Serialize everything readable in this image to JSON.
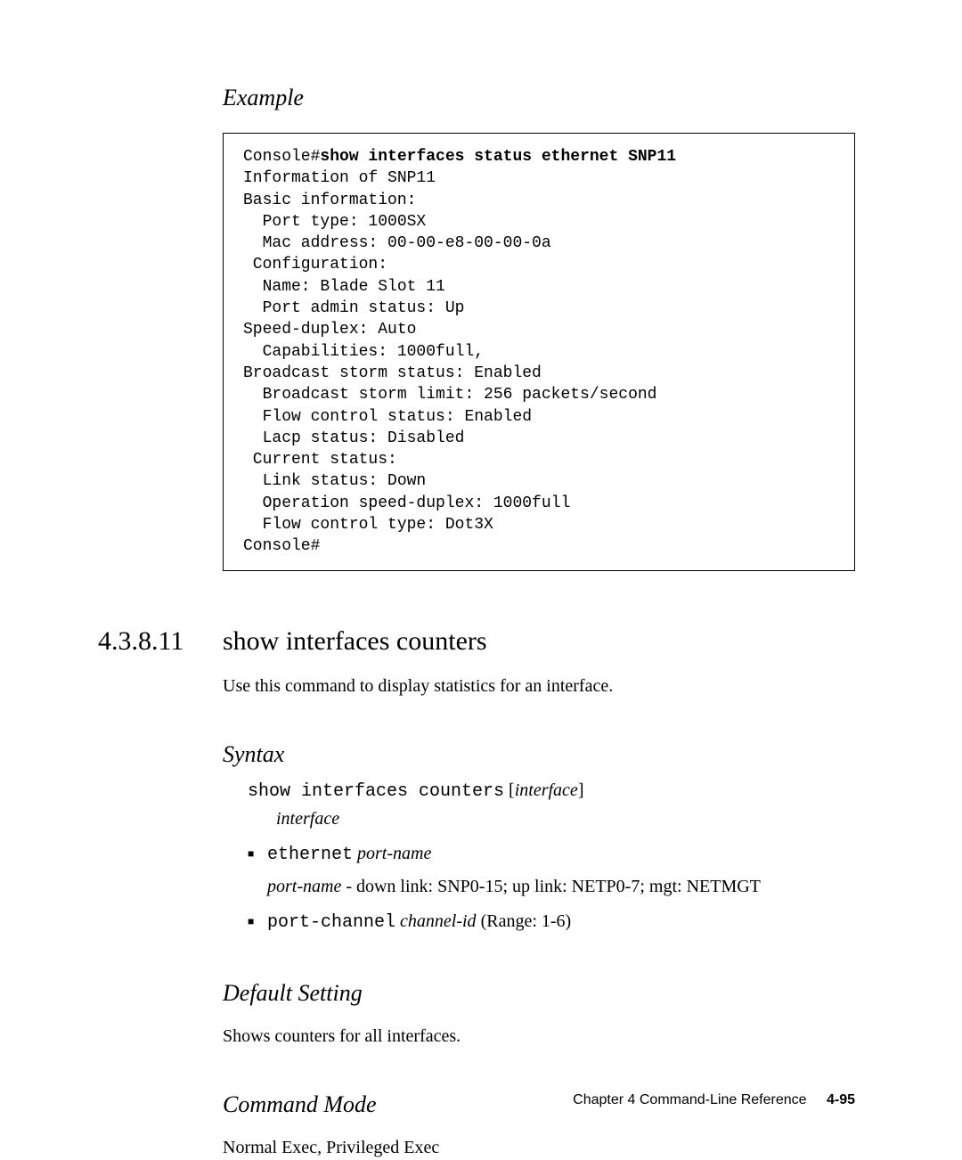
{
  "example": {
    "heading": "Example",
    "code_prefix": "Console#",
    "code_bold": "show interfaces status ethernet SNP11",
    "code_body": "Information of SNP11\nBasic information:\n  Port type: 1000SX\n  Mac address: 00-00-e8-00-00-0a\n Configuration:\n  Name: Blade Slot 11\n  Port admin status: Up\nSpeed-duplex: Auto\n  Capabilities: 1000full,\nBroadcast storm status: Enabled\n  Broadcast storm limit: 256 packets/second\n  Flow control status: Enabled\n  Lacp status: Disabled\n Current status:\n  Link status: Down\n  Operation speed-duplex: 1000full\n  Flow control type: Dot3X\nConsole#"
  },
  "section": {
    "number": "4.3.8.11",
    "title": "show interfaces counters",
    "intro": "Use this command to display statistics for an interface."
  },
  "syntax": {
    "heading": "Syntax",
    "cmd_mono": "show interfaces counters",
    "cmd_bracket_open": " [",
    "cmd_arg": "interface",
    "cmd_bracket_close": "]",
    "arg_line": "interface",
    "bullet1_mono": "ethernet",
    "bullet1_ital": " port-name",
    "bullet1_sub_ital": "port-name",
    "bullet1_sub_rest": " - down link: SNP0-15; up link: NETP0-7; mgt: NETMGT",
    "bullet2_mono": "port-channel",
    "bullet2_ital": " channel-id",
    "bullet2_rest": " (Range: 1-6)"
  },
  "default_setting": {
    "heading": "Default Setting",
    "body": "Shows counters for all interfaces."
  },
  "command_mode": {
    "heading": "Command Mode",
    "body": "Normal Exec, Privileged Exec"
  },
  "footer": {
    "chapter": "Chapter 4   Command-Line Reference",
    "page": "4-95"
  }
}
